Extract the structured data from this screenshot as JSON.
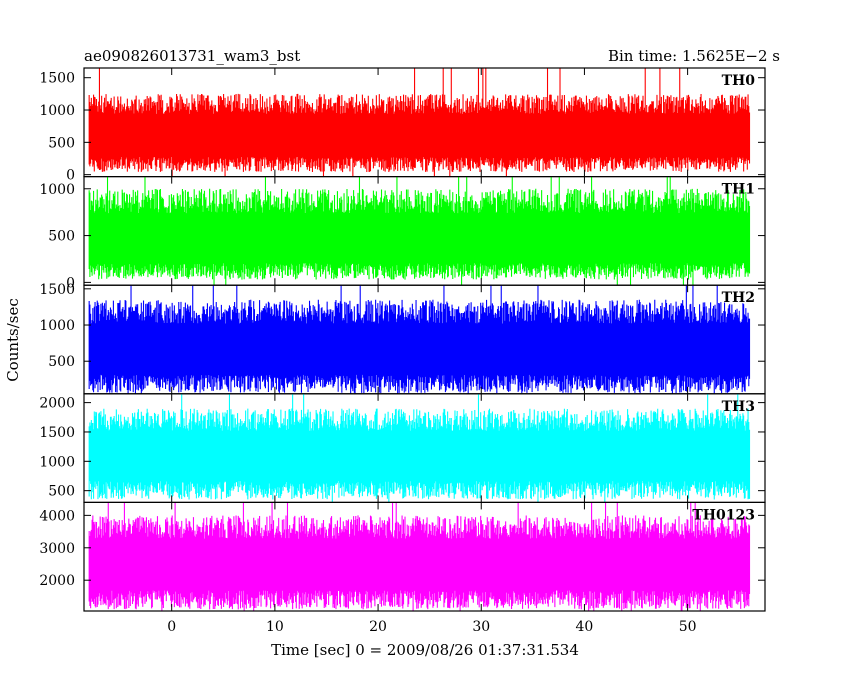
{
  "header": {
    "title": "ae090826013731_wam3_bst",
    "bin_time": "Bin time: 1.5625E−2 s"
  },
  "chart_data": {
    "type": "line",
    "title": "ae090826013731_wam3_bst",
    "xlabel": "Time [sec] 0 = 2009/08/26 01:37:31.534",
    "ylabel": "Counts/sec",
    "xlim": [
      -8.5,
      57.5
    ],
    "x_start": -8,
    "x_end": 56,
    "xticks": [
      0,
      10,
      20,
      30,
      40,
      50
    ],
    "xtick_labels": [
      "0",
      "10",
      "20",
      "30",
      "40",
      "50"
    ],
    "grid": false,
    "panels": [
      {
        "name": "TH0",
        "color": "#ff0000",
        "ylim": [
          -30,
          1650
        ],
        "yticks": [
          0,
          500,
          1000,
          1500
        ],
        "ytick_labels": [
          "0",
          "500",
          "1000",
          "1500"
        ],
        "mean": 560,
        "min": 40,
        "typical_max": 1250,
        "peak": 1650
      },
      {
        "name": "TH1",
        "color": "#00ff00",
        "ylim": [
          -30,
          1130
        ],
        "yticks": [
          0,
          500,
          1000
        ],
        "ytick_labels": [
          "0",
          "500",
          "1000"
        ],
        "mean": 420,
        "min": 30,
        "typical_max": 1000,
        "peak": 1130
      },
      {
        "name": "TH2",
        "color": "#0000ff",
        "ylim": [
          50,
          1550
        ],
        "yticks": [
          500,
          1000,
          1500
        ],
        "ytick_labels": [
          "500",
          "1000",
          "1500"
        ],
        "mean": 620,
        "min": 60,
        "typical_max": 1350,
        "peak": 1550
      },
      {
        "name": "TH3",
        "color": "#00ffff",
        "ylim": [
          300,
          2150
        ],
        "yticks": [
          500,
          1000,
          1500,
          2000
        ],
        "ytick_labels": [
          "500",
          "1000",
          "1500",
          "2000"
        ],
        "mean": 1050,
        "min": 350,
        "typical_max": 1900,
        "peak": 2150
      },
      {
        "name": "TH0123",
        "color": "#ff00ff",
        "ylim": [
          1050,
          4400
        ],
        "yticks": [
          2000,
          3000,
          4000
        ],
        "ytick_labels": [
          "2000",
          "3000",
          "4000"
        ],
        "mean": 2400,
        "min": 1100,
        "typical_max": 4000,
        "peak": 4400
      }
    ]
  }
}
